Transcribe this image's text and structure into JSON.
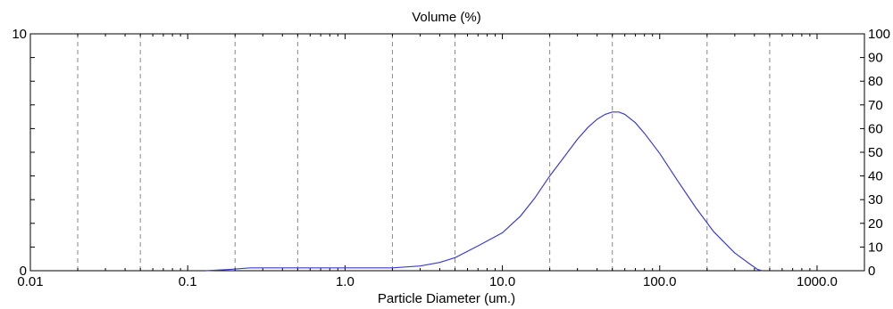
{
  "chart_data": {
    "type": "line",
    "title": "Volume (%)",
    "xlabel": "Particle Diameter (um.)",
    "ylabel": "",
    "x_scale": "log",
    "xlim": [
      0.01,
      2000
    ],
    "ylim": [
      0,
      10
    ],
    "y2lim": [
      0,
      100
    ],
    "grid": "vertical dashed",
    "x_tick_labels": [
      {
        "value": 0.01,
        "label": "0.01"
      },
      {
        "value": 0.1,
        "label": "0.1"
      },
      {
        "value": 1,
        "label": "1.0"
      },
      {
        "value": 10,
        "label": "10.0"
      },
      {
        "value": 100,
        "label": "100.0"
      },
      {
        "value": 1000,
        "label": "1000.0"
      }
    ],
    "y_left_tick_labels": [
      {
        "value": 0,
        "label": "0"
      },
      {
        "value": 10,
        "label": "10"
      }
    ],
    "y_right_tick_labels": [
      {
        "value": 0,
        "label": "0"
      },
      {
        "value": 10,
        "label": "10"
      },
      {
        "value": 20,
        "label": "20"
      },
      {
        "value": 30,
        "label": "30"
      },
      {
        "value": 40,
        "label": "40"
      },
      {
        "value": 50,
        "label": "50"
      },
      {
        "value": 60,
        "label": "60"
      },
      {
        "value": 70,
        "label": "70"
      },
      {
        "value": 80,
        "label": "80"
      },
      {
        "value": 90,
        "label": "90"
      },
      {
        "value": 100,
        "label": "100"
      }
    ],
    "series": [
      {
        "color": "#3b3bd6",
        "x": [
          0.13,
          0.18,
          0.25,
          0.5,
          1.0,
          2.0,
          3.0,
          4.0,
          5.0,
          7.0,
          10.0,
          13.0,
          16.0,
          20.0,
          25.0,
          30.0,
          35.0,
          40.0,
          45.0,
          50.0,
          55.0,
          60.0,
          70.0,
          80.0,
          100.0,
          130.0,
          170.0,
          220.0,
          300.0,
          380.0,
          420.0,
          450.0
        ],
        "y": [
          0.0,
          0.05,
          0.12,
          0.12,
          0.12,
          0.12,
          0.2,
          0.35,
          0.55,
          1.05,
          1.6,
          2.3,
          3.05,
          4.0,
          4.85,
          5.55,
          6.05,
          6.4,
          6.6,
          6.7,
          6.7,
          6.6,
          6.25,
          5.8,
          4.95,
          3.8,
          2.65,
          1.65,
          0.75,
          0.25,
          0.05,
          0.0
        ]
      }
    ]
  }
}
